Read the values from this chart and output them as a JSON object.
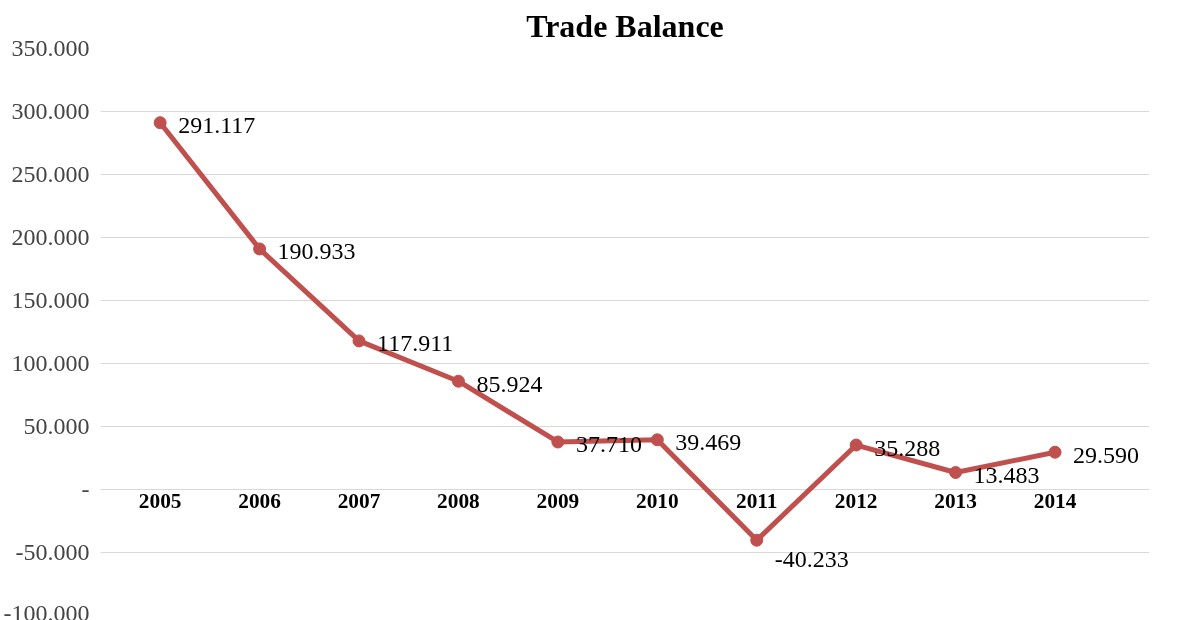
{
  "chart_data": {
    "type": "line",
    "title": "Trade Balance",
    "categories": [
      "2005",
      "2006",
      "2007",
      "2008",
      "2009",
      "2010",
      "2011",
      "2012",
      "2013",
      "2014"
    ],
    "series": [
      {
        "color": "#c0504d",
        "values": [
          291117,
          190933,
          117911,
          85924,
          37710,
          39469,
          -40233,
          35288,
          13483,
          29590
        ],
        "value_labels": [
          "291.117",
          "190.933",
          "117.911",
          "85.924",
          "37.710",
          "39.469",
          "-40.233",
          "35.288",
          "13.483",
          "29.590"
        ]
      }
    ],
    "ylim": [
      -100000,
      350000
    ],
    "yticks": [
      {
        "value": -100000,
        "label": "-100.000"
      },
      {
        "value": -50000,
        "label": "-50.000"
      },
      {
        "value": 0,
        "label": "-"
      },
      {
        "value": 50000,
        "label": "50.000"
      },
      {
        "value": 100000,
        "label": "100.000"
      },
      {
        "value": 150000,
        "label": "150.000"
      },
      {
        "value": 200000,
        "label": "200.000"
      },
      {
        "value": 250000,
        "label": "250.000"
      },
      {
        "value": 300000,
        "label": "300.000"
      },
      {
        "value": 350000,
        "label": "350.000"
      }
    ],
    "grid": "y",
    "marker": "circle",
    "line_style": "solid"
  }
}
